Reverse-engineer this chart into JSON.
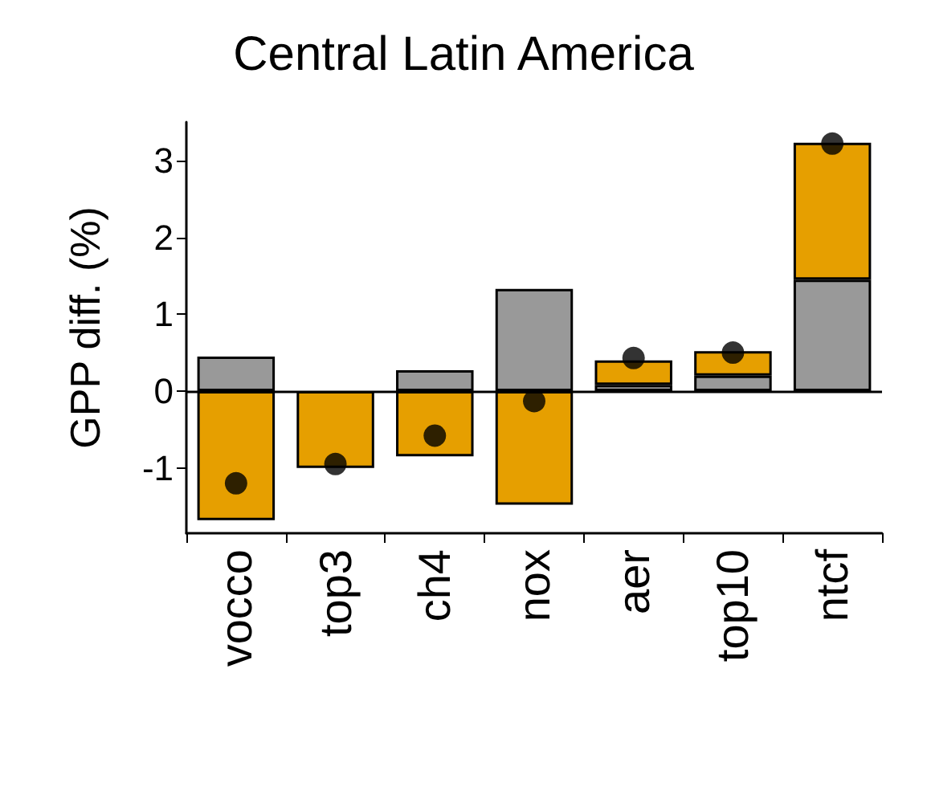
{
  "chart_data": {
    "type": "bar",
    "title": "Central Latin America",
    "ylabel": "GPP diff. (%)",
    "categories": [
      "vocco",
      "top3",
      "ch4",
      "nox",
      "aer",
      "top10",
      "ntcf"
    ],
    "stacked": true,
    "series": [
      {
        "color": "#999999",
        "values": [
          0.45,
          null,
          0.27,
          1.33,
          0.08,
          0.2,
          1.45
        ]
      },
      {
        "color": "#e69f00",
        "values": [
          -1.68,
          -1.0,
          -0.85,
          -1.48,
          0.32,
          0.32,
          1.78
        ]
      },
      {
        "type": "scatter",
        "color": "#000000",
        "x": [
          "vocco",
          "top3",
          "ch4",
          "nox",
          "aer",
          "top10",
          "ntcf"
        ],
        "values": [
          -1.2,
          -0.95,
          -0.58,
          -0.13,
          0.43,
          0.5,
          3.22
        ]
      }
    ],
    "ylim": [
      -1.85,
      3.5
    ],
    "yticks": [
      -1,
      0,
      1,
      2,
      3
    ],
    "ref_lines": [
      {
        "axis": "y",
        "value": 0,
        "color": "#000000"
      }
    ],
    "grid": false,
    "marker": "circle"
  }
}
